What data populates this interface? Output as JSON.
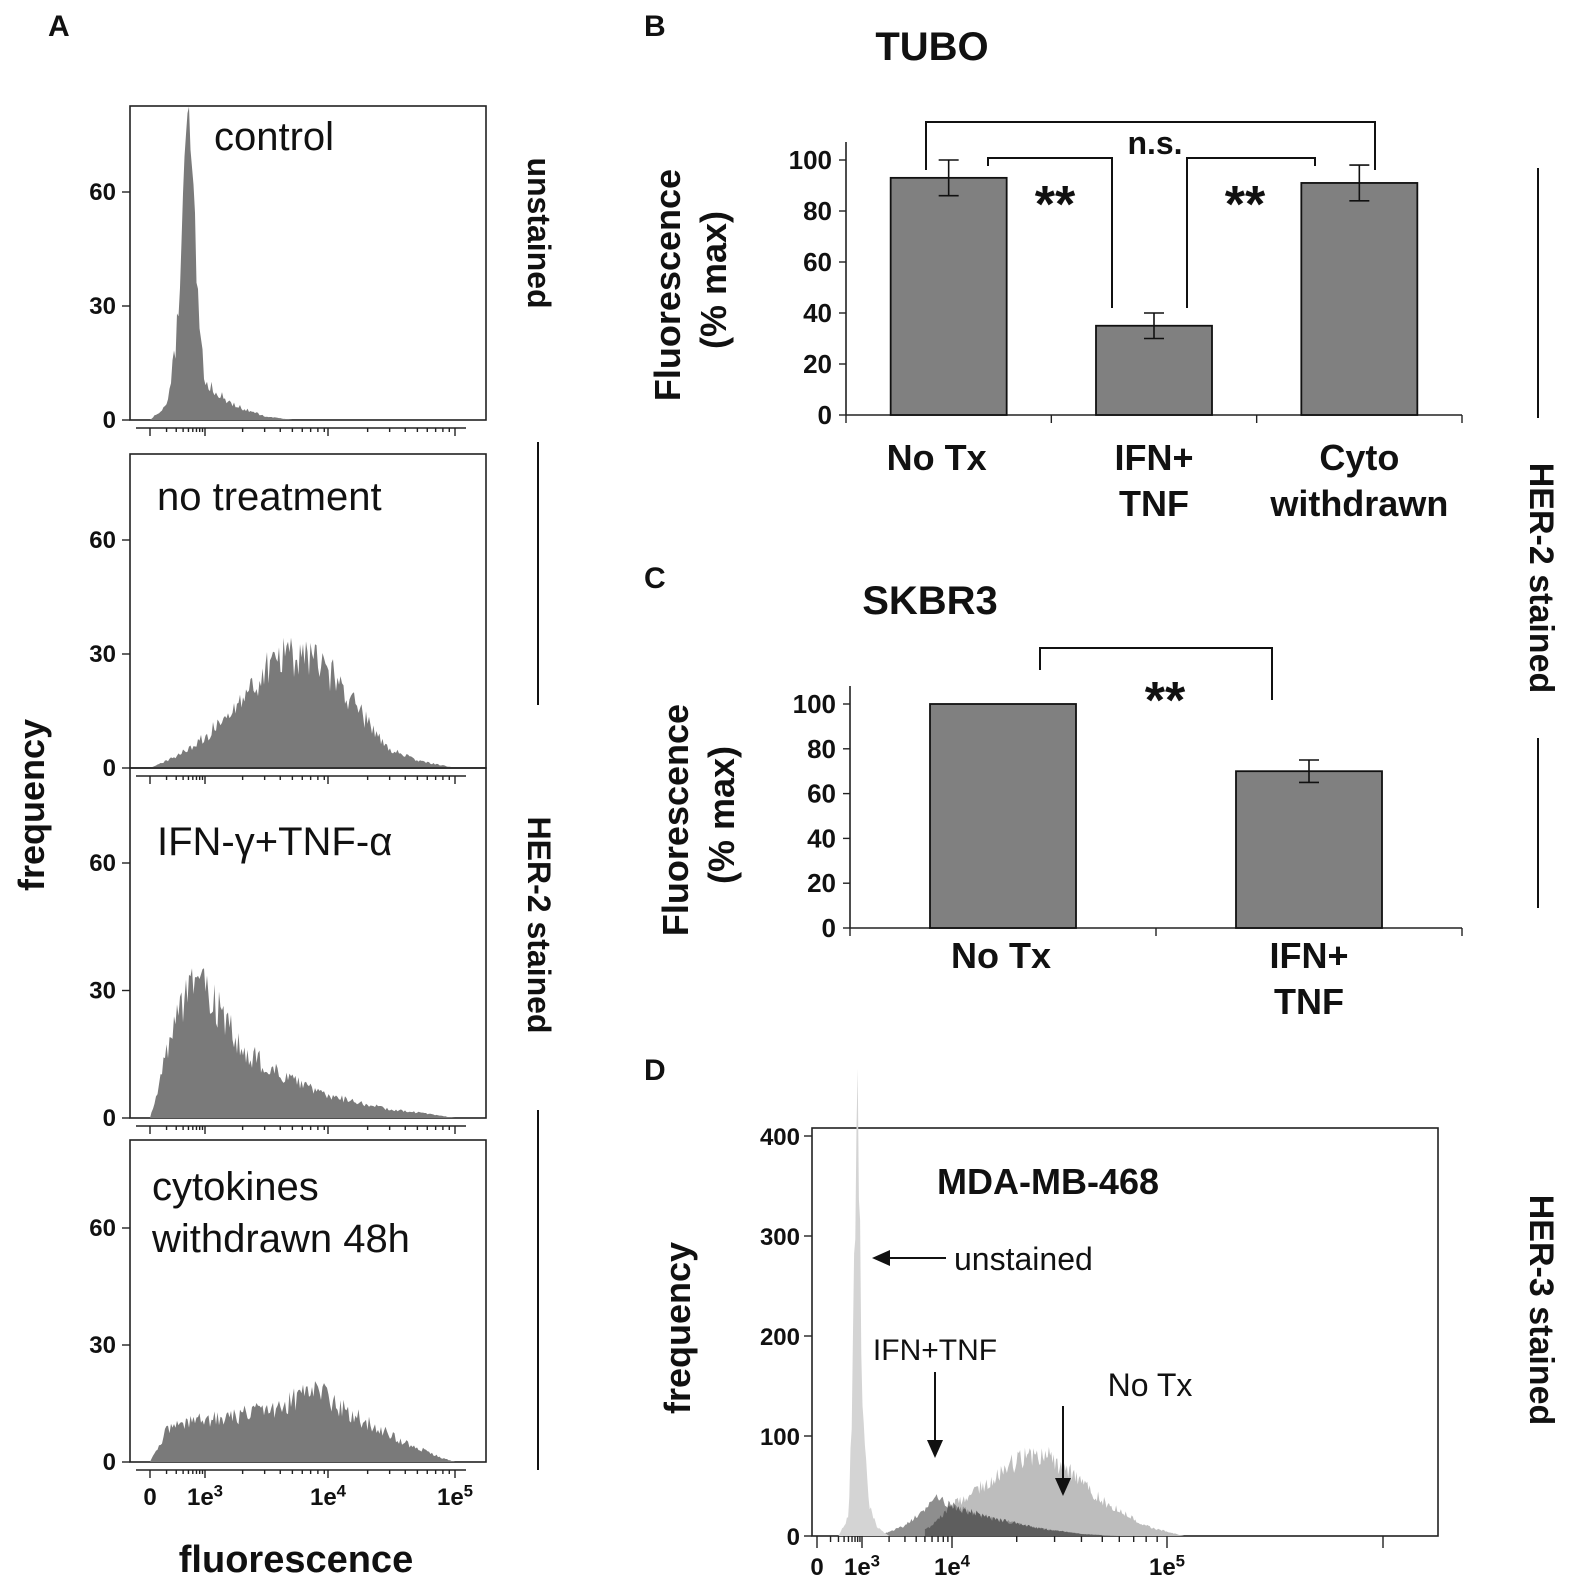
{
  "panels": {
    "a": "A",
    "b": "B",
    "c": "C",
    "d": "D"
  },
  "panel_a": {
    "ylabel": "frequency",
    "xlabel": "fluorescence",
    "right_labels": {
      "top": "unstained",
      "bottom": "HER-2 stained"
    },
    "hist_color": "#7a7a7a"
  },
  "panel_b": {
    "right_label": "HER-2 stained",
    "bracket_labels": {
      "top": "n.s.",
      "left": "**",
      "right": "**"
    }
  },
  "panel_c": {
    "bracket_label": "**"
  },
  "panel_d": {
    "right_label": "HER-3 stained",
    "annotations": {
      "unstained": "unstained",
      "ifn": "IFN+TNF",
      "notx": "No Tx"
    },
    "colors": {
      "unstained": "#d4d4d4",
      "notx": "#bdbdbd",
      "ifn": "#8e8e8e",
      "overlap": "#5e5e5e"
    }
  },
  "chart_data": [
    {
      "type": "area",
      "title": "control",
      "xlabel": "fluorescence",
      "ylabel": "frequency",
      "x_ticks": [
        "0",
        "1e3",
        "1e4",
        "1e5"
      ],
      "y_ticks": [
        0,
        30,
        60
      ],
      "ylim": [
        0,
        80
      ],
      "series": [
        {
          "x": [
            "1e2",
            "2e2",
            "3e2",
            "4e2",
            "5e2",
            "6e2",
            "8e2",
            "1e3",
            "1.5e3",
            "2e3",
            "3e3",
            "5e3"
          ],
          "values": [
            0,
            4,
            20,
            55,
            78,
            60,
            25,
            10,
            5,
            3,
            1,
            0
          ]
        }
      ]
    },
    {
      "type": "area",
      "title": "no treatment",
      "xlabel": "fluorescence",
      "ylabel": "frequency",
      "x_ticks": [
        "0",
        "1e3",
        "1e4",
        "1e5"
      ],
      "y_ticks": [
        0,
        30,
        60
      ],
      "ylim": [
        0,
        80
      ],
      "series": [
        {
          "x": [
            "1e2",
            "3e2",
            "1e3",
            "2e3",
            "3e3",
            "5e3",
            "8e3",
            "1.2e4",
            "2e4",
            "3e4",
            "5e4",
            "1e5"
          ],
          "values": [
            0,
            3,
            8,
            18,
            26,
            30,
            28,
            22,
            12,
            5,
            2,
            0
          ]
        }
      ]
    },
    {
      "type": "area",
      "title": "IFN-γ+TNF-α",
      "xlabel": "fluorescence",
      "ylabel": "frequency",
      "x_ticks": [
        "0",
        "1e3",
        "1e4",
        "1e5"
      ],
      "y_ticks": [
        0,
        30,
        60
      ],
      "ylim": [
        0,
        80
      ],
      "series": [
        {
          "x": [
            "1e2",
            "2e2",
            "4e2",
            "7e2",
            "1e3",
            "2e3",
            "4e3",
            "8e3",
            "1.5e4",
            "3e4",
            "6e4",
            "1e5"
          ],
          "values": [
            0,
            15,
            28,
            36,
            30,
            16,
            10,
            6,
            4,
            2,
            1,
            0
          ]
        }
      ]
    },
    {
      "type": "area",
      "title": "cytokines withdrawn 48h",
      "xlabel": "fluorescence",
      "ylabel": "frequency",
      "x_ticks": [
        "0",
        "1e3",
        "1e4",
        "1e5"
      ],
      "y_ticks": [
        0,
        30,
        60
      ],
      "ylim": [
        0,
        80
      ],
      "series": [
        {
          "x": [
            "1e2",
            "2e2",
            "5e2",
            "1e3",
            "2e3",
            "4e3",
            "6e3",
            "8e3",
            "1.2e4",
            "2e4",
            "4e4",
            "8e4",
            "1e5"
          ],
          "values": [
            0,
            8,
            10,
            11,
            12,
            14,
            17,
            18,
            14,
            10,
            5,
            1,
            0
          ]
        }
      ]
    },
    {
      "type": "bar",
      "title": "TUBO",
      "ylabel": "Fluorescence (% max)",
      "categories": [
        "No Tx",
        "IFN+ TNF",
        "Cyto withdrawn"
      ],
      "values": [
        93,
        35,
        91
      ],
      "errors": [
        7,
        5,
        7
      ],
      "ylim": [
        0,
        100
      ],
      "y_ticks": [
        0,
        20,
        40,
        60,
        80,
        100
      ]
    },
    {
      "type": "bar",
      "title": "SKBR3",
      "ylabel": "Fluorescence (% max)",
      "categories": [
        "No Tx",
        "IFN+ TNF"
      ],
      "values": [
        100,
        70
      ],
      "errors": [
        0,
        5
      ],
      "ylim": [
        0,
        100
      ],
      "y_ticks": [
        0,
        20,
        40,
        60,
        80,
        100
      ]
    },
    {
      "type": "area",
      "title": "MDA-MB-468",
      "ylabel": "frequency",
      "x_ticks": [
        "0",
        "1e3",
        "1e4",
        "1e5"
      ],
      "y_ticks": [
        0,
        100,
        200,
        300,
        400
      ],
      "ylim": [
        0,
        400
      ],
      "series": [
        {
          "name": "unstained",
          "x": [
            "3e2",
            "5e2",
            "6e2",
            "7e2",
            "8e2",
            "9e2",
            "1e3",
            "1.2e3",
            "1.5e3",
            "2e3"
          ],
          "values": [
            0,
            20,
            120,
            330,
            410,
            300,
            120,
            30,
            8,
            0
          ]
        },
        {
          "name": "IFN+TNF",
          "x": [
            "1.5e3",
            "3e3",
            "5e3",
            "7e3",
            "1e4",
            "1.5e4",
            "2.5e4",
            "4e4",
            "6e4"
          ],
          "values": [
            0,
            10,
            28,
            38,
            30,
            18,
            8,
            2,
            0
          ]
        },
        {
          "name": "No Tx",
          "x": [
            "3e3",
            "6e3",
            "1e4",
            "1.5e4",
            "2e4",
            "2.5e4",
            "3.5e4",
            "5e4",
            "8e4",
            "1.2e5"
          ],
          "values": [
            0,
            10,
            30,
            55,
            75,
            85,
            65,
            35,
            10,
            0
          ]
        }
      ]
    }
  ]
}
